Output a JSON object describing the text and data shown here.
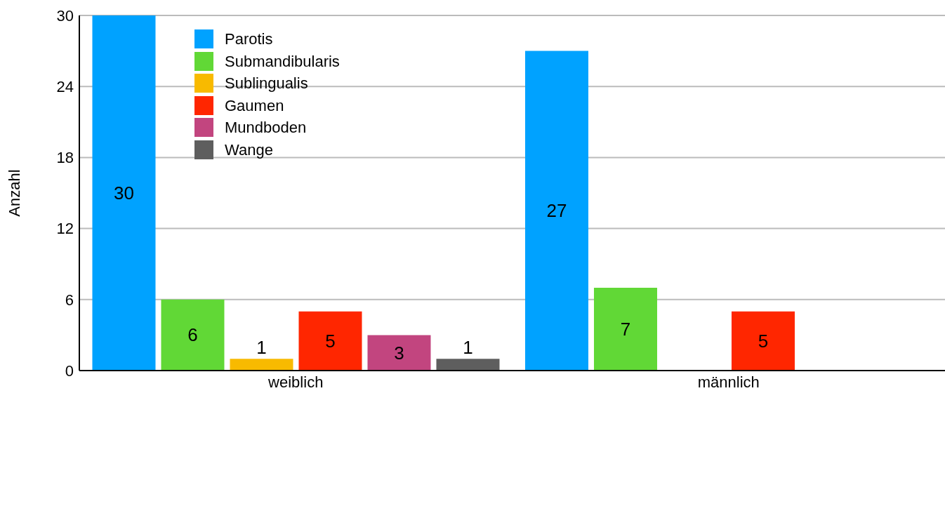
{
  "chart_data": {
    "type": "bar",
    "ylabel": "Anzahl",
    "categories": [
      "weiblich",
      "männlich"
    ],
    "series": [
      {
        "name": "Parotis",
        "color": "#00a2ff",
        "values": [
          30,
          27
        ]
      },
      {
        "name": "Submandibularis",
        "color": "#61d836",
        "values": [
          6,
          7
        ]
      },
      {
        "name": "Sublingualis",
        "color": "#f8ba00",
        "values": [
          1,
          null
        ]
      },
      {
        "name": "Gaumen",
        "color": "#ff2600",
        "values": [
          5,
          5
        ]
      },
      {
        "name": "Mundboden",
        "color": "#c2457f",
        "values": [
          3,
          null
        ]
      },
      {
        "name": "Wange",
        "color": "#5e5e5e",
        "values": [
          1,
          null
        ]
      }
    ],
    "ylim": [
      0,
      30
    ],
    "yticks": [
      0,
      6,
      12,
      18,
      24,
      30
    ],
    "grid": "y",
    "legend": "top left",
    "data_labels": true
  }
}
